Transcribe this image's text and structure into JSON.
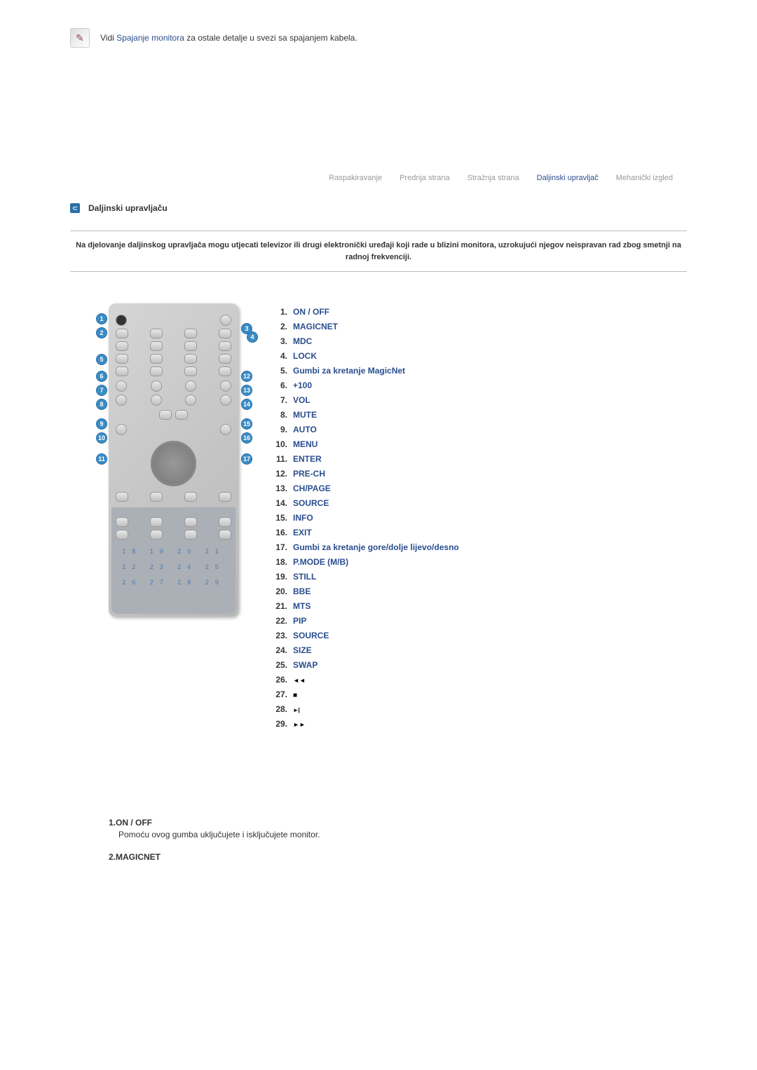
{
  "intro": {
    "prefix": "Vidi ",
    "link": "Spajanje monitora",
    "suffix": " za ostale detalje u svezi sa spajanjem kabela."
  },
  "tabs": [
    {
      "label": "Raspakiravanje",
      "active": false
    },
    {
      "label": "Prednja strana",
      "active": false
    },
    {
      "label": "Stražnja strana",
      "active": false
    },
    {
      "label": "Daljinski upravljač",
      "active": true
    },
    {
      "label": "Mehanički izgled",
      "active": false
    }
  ],
  "section_title": "Daljinski upravljaču",
  "warning": "Na djelovanje daljinskog upravljača mogu utjecati televizor ili drugi elektronički uređaji koji rade u blizini monitora, uzrokujući njegov neispravan rad zbog smetnji na radnoj frekvenciji.",
  "remote_numbers": {
    "left": [
      "1",
      "2",
      "5",
      "6",
      "7",
      "8",
      "9",
      "10",
      "11"
    ],
    "right": [
      "3",
      "4",
      "12",
      "13",
      "14",
      "15",
      "16",
      "17"
    ],
    "bottom_row1": "18 19 20 21",
    "bottom_row2": "22 23 24 25",
    "bottom_row3": "26 27 28 29"
  },
  "list": [
    {
      "n": "1.",
      "label": "ON / OFF",
      "link": true
    },
    {
      "n": "2.",
      "label": "MAGICNET",
      "link": true
    },
    {
      "n": "3.",
      "label": "MDC",
      "link": true
    },
    {
      "n": "4.",
      "label": "LOCK",
      "link": true
    },
    {
      "n": "5.",
      "label": "Gumbi za kretanje MagicNet",
      "link": true
    },
    {
      "n": "6.",
      "label": "+100",
      "link": true
    },
    {
      "n": "7.",
      "label": "VOL",
      "link": true
    },
    {
      "n": "8.",
      "label": "MUTE",
      "link": true
    },
    {
      "n": "9.",
      "label": "AUTO",
      "link": true
    },
    {
      "n": "10.",
      "label": "MENU",
      "link": true
    },
    {
      "n": "11.",
      "label": "ENTER",
      "link": true
    },
    {
      "n": "12.",
      "label": "PRE-CH",
      "link": true
    },
    {
      "n": "13.",
      "label": "CH/PAGE",
      "link": true
    },
    {
      "n": "14.",
      "label": "SOURCE",
      "link": true
    },
    {
      "n": "15.",
      "label": "INFO",
      "link": true
    },
    {
      "n": "16.",
      "label": "EXIT",
      "link": true
    },
    {
      "n": "17.",
      "label": "Gumbi za kretanje gore/dolje lijevo/desno",
      "link": true
    },
    {
      "n": "18.",
      "label": "P.MODE (M/B)",
      "link": true
    },
    {
      "n": "19.",
      "label": "STILL",
      "link": true
    },
    {
      "n": "20.",
      "label": "BBE",
      "link": true
    },
    {
      "n": "21.",
      "label": "MTS",
      "link": true
    },
    {
      "n": "22.",
      "label": "PIP",
      "link": true
    },
    {
      "n": "23.",
      "label": "SOURCE",
      "link": true
    },
    {
      "n": "24.",
      "label": "SIZE",
      "link": true
    },
    {
      "n": "25.",
      "label": "SWAP",
      "link": true
    },
    {
      "n": "26.",
      "icon": "icon-rewind"
    },
    {
      "n": "27.",
      "icon": "icon-stop"
    },
    {
      "n": "28.",
      "icon": "icon-playpause"
    },
    {
      "n": "29.",
      "icon": "icon-forward"
    }
  ],
  "descriptions": [
    {
      "title": "1.ON / OFF",
      "text": "Pomoću ovog gumba uključujete i isključujete monitor."
    },
    {
      "title": "2.MAGICNET",
      "text": ""
    }
  ],
  "colors": {
    "link_color": "#2a4e8f",
    "tab_inactive": "#999",
    "tab_active": "#2a4e8f",
    "badge_bg": "#3a8cc4"
  }
}
